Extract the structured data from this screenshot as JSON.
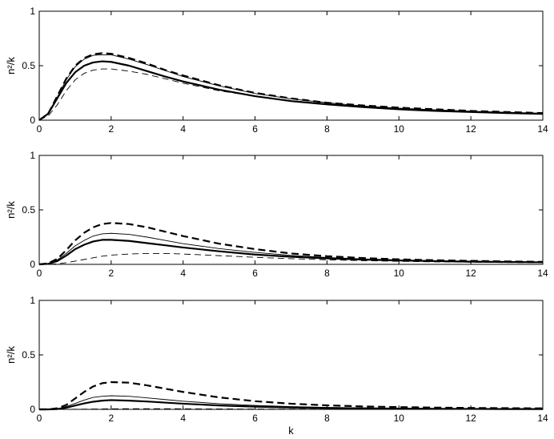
{
  "chart_data": [
    {
      "type": "line",
      "xlabel": "",
      "ylabel": "n²/k",
      "xlim": [
        0,
        14
      ],
      "ylim": [
        0,
        1
      ],
      "xticks": [
        "0",
        "2",
        "4",
        "6",
        "8",
        "10",
        "12",
        "14"
      ],
      "yticks": [
        "0",
        "0.5",
        "1"
      ],
      "grid": false,
      "series": [
        {
          "style": "thick-dashed",
          "x": [
            0,
            0.25,
            0.5,
            0.75,
            1,
            1.25,
            1.5,
            1.75,
            2,
            2.5,
            3,
            3.5,
            4,
            5,
            6,
            7,
            8,
            9,
            10,
            11,
            12,
            13,
            14
          ],
          "y": [
            0,
            0.06,
            0.22,
            0.38,
            0.5,
            0.57,
            0.605,
            0.615,
            0.61,
            0.57,
            0.52,
            0.46,
            0.41,
            0.32,
            0.25,
            0.2,
            0.16,
            0.135,
            0.115,
            0.1,
            0.085,
            0.075,
            0.065
          ]
        },
        {
          "style": "thin-solid",
          "x": [
            0,
            0.25,
            0.5,
            0.75,
            1,
            1.25,
            1.5,
            1.75,
            2,
            2.5,
            3,
            3.5,
            4,
            5,
            6,
            7,
            8,
            9,
            10,
            11,
            12,
            13,
            14
          ],
          "y": [
            0,
            0.06,
            0.21,
            0.37,
            0.49,
            0.56,
            0.595,
            0.6,
            0.6,
            0.56,
            0.51,
            0.455,
            0.4,
            0.315,
            0.245,
            0.195,
            0.16,
            0.13,
            0.11,
            0.095,
            0.082,
            0.072,
            0.063
          ]
        },
        {
          "style": "thick-solid",
          "x": [
            0,
            0.25,
            0.5,
            0.75,
            1,
            1.25,
            1.5,
            1.75,
            2,
            2.5,
            3,
            3.5,
            4,
            5,
            6,
            7,
            8,
            9,
            10,
            11,
            12,
            13,
            14
          ],
          "y": [
            0,
            0.06,
            0.2,
            0.34,
            0.44,
            0.5,
            0.53,
            0.54,
            0.535,
            0.5,
            0.45,
            0.4,
            0.355,
            0.28,
            0.22,
            0.175,
            0.145,
            0.12,
            0.1,
            0.085,
            0.075,
            0.065,
            0.058
          ]
        },
        {
          "style": "thin-dashed",
          "x": [
            0,
            0.25,
            0.5,
            0.75,
            1,
            1.25,
            1.5,
            1.75,
            2,
            2.5,
            3,
            3.5,
            4,
            5,
            6,
            7,
            8,
            9,
            10,
            11,
            12,
            13,
            14
          ],
          "y": [
            0,
            0.04,
            0.14,
            0.27,
            0.37,
            0.43,
            0.46,
            0.47,
            0.47,
            0.45,
            0.42,
            0.38,
            0.34,
            0.27,
            0.22,
            0.18,
            0.15,
            0.125,
            0.105,
            0.09,
            0.078,
            0.068,
            0.06
          ]
        }
      ]
    },
    {
      "type": "line",
      "xlabel": "",
      "ylabel": "n²/k",
      "xlim": [
        0,
        14
      ],
      "ylim": [
        0,
        1
      ],
      "xticks": [
        "0",
        "2",
        "4",
        "6",
        "8",
        "10",
        "12",
        "14"
      ],
      "yticks": [
        "0",
        "0.5",
        "1"
      ],
      "grid": false,
      "series": [
        {
          "style": "thick-dashed",
          "x": [
            0,
            0.25,
            0.5,
            0.75,
            1,
            1.25,
            1.5,
            1.75,
            2,
            2.5,
            3,
            3.5,
            4,
            5,
            6,
            7,
            8,
            9,
            10,
            11,
            12,
            13,
            14
          ],
          "y": [
            0,
            0.01,
            0.05,
            0.13,
            0.22,
            0.29,
            0.34,
            0.37,
            0.38,
            0.37,
            0.34,
            0.3,
            0.26,
            0.19,
            0.14,
            0.1,
            0.075,
            0.058,
            0.046,
            0.038,
            0.032,
            0.027,
            0.023
          ]
        },
        {
          "style": "thin-solid",
          "x": [
            0,
            0.25,
            0.5,
            0.75,
            1,
            1.25,
            1.5,
            1.75,
            2,
            2.5,
            3,
            3.5,
            4,
            5,
            6,
            7,
            8,
            9,
            10,
            11,
            12,
            13,
            14
          ],
          "y": [
            0,
            0.005,
            0.04,
            0.1,
            0.17,
            0.22,
            0.26,
            0.28,
            0.285,
            0.275,
            0.25,
            0.22,
            0.19,
            0.145,
            0.11,
            0.082,
            0.063,
            0.05,
            0.04,
            0.033,
            0.028,
            0.024,
            0.02
          ]
        },
        {
          "style": "thick-solid",
          "x": [
            0,
            0.25,
            0.5,
            0.75,
            1,
            1.25,
            1.5,
            1.75,
            2,
            2.5,
            3,
            3.5,
            4,
            5,
            6,
            7,
            8,
            9,
            10,
            11,
            12,
            13,
            14
          ],
          "y": [
            0,
            0.005,
            0.03,
            0.08,
            0.14,
            0.18,
            0.21,
            0.225,
            0.225,
            0.215,
            0.195,
            0.175,
            0.155,
            0.12,
            0.09,
            0.07,
            0.055,
            0.044,
            0.036,
            0.03,
            0.025,
            0.022,
            0.019
          ]
        },
        {
          "style": "thin-dashed",
          "x": [
            0,
            0.25,
            0.5,
            0.75,
            1,
            1.25,
            1.5,
            1.75,
            2,
            2.5,
            3,
            3.5,
            4,
            5,
            6,
            7,
            8,
            9,
            10,
            11,
            12,
            13,
            14
          ],
          "y": [
            0,
            0,
            0.005,
            0.015,
            0.03,
            0.045,
            0.06,
            0.075,
            0.085,
            0.095,
            0.1,
            0.1,
            0.095,
            0.08,
            0.065,
            0.052,
            0.042,
            0.034,
            0.028,
            0.023,
            0.02,
            0.017,
            0.015
          ]
        }
      ]
    },
    {
      "type": "line",
      "xlabel": "k",
      "ylabel": "n²/k",
      "xlim": [
        0,
        14
      ],
      "ylim": [
        0,
        1
      ],
      "xticks": [
        "0",
        "2",
        "4",
        "6",
        "8",
        "10",
        "12",
        "14"
      ],
      "yticks": [
        "0",
        "0.5",
        "1"
      ],
      "grid": false,
      "series": [
        {
          "style": "thick-dashed",
          "x": [
            0,
            0.25,
            0.5,
            0.75,
            1,
            1.25,
            1.5,
            1.75,
            2,
            2.5,
            3,
            3.5,
            4,
            5,
            6,
            7,
            8,
            9,
            10,
            11,
            12,
            13,
            14
          ],
          "y": [
            0,
            0,
            0.01,
            0.04,
            0.1,
            0.16,
            0.21,
            0.24,
            0.25,
            0.245,
            0.22,
            0.19,
            0.16,
            0.11,
            0.075,
            0.052,
            0.037,
            0.027,
            0.021,
            0.016,
            0.013,
            0.011,
            0.009
          ]
        },
        {
          "style": "thin-solid",
          "x": [
            0,
            0.25,
            0.5,
            0.75,
            1,
            1.25,
            1.5,
            1.75,
            2,
            2.5,
            3,
            3.5,
            4,
            5,
            6,
            7,
            8,
            9,
            10,
            11,
            12,
            13,
            14
          ],
          "y": [
            0,
            0,
            0.005,
            0.025,
            0.055,
            0.085,
            0.11,
            0.12,
            0.125,
            0.12,
            0.105,
            0.09,
            0.075,
            0.052,
            0.036,
            0.025,
            0.018,
            0.013,
            0.01,
            0.008,
            0.006,
            0.005,
            0.004
          ]
        },
        {
          "style": "thick-solid",
          "x": [
            0,
            0.25,
            0.5,
            0.75,
            1,
            1.25,
            1.5,
            1.75,
            2,
            2.5,
            3,
            3.5,
            4,
            5,
            6,
            7,
            8,
            9,
            10,
            11,
            12,
            13,
            14
          ],
          "y": [
            0,
            0,
            0.003,
            0.015,
            0.035,
            0.055,
            0.07,
            0.08,
            0.085,
            0.08,
            0.072,
            0.062,
            0.052,
            0.036,
            0.025,
            0.017,
            0.012,
            0.009,
            0.007,
            0.005,
            0.004,
            0.003,
            0.003
          ]
        },
        {
          "style": "thin-dashed",
          "x": [
            0,
            0.25,
            0.5,
            0.75,
            1,
            1.25,
            1.5,
            1.75,
            2,
            2.5,
            3,
            3.5,
            4,
            5,
            6,
            7,
            8,
            9,
            10,
            11,
            12,
            13,
            14
          ],
          "y": [
            0,
            0,
            0,
            0,
            0.001,
            0.002,
            0.003,
            0.004,
            0.005,
            0.006,
            0.006,
            0.006,
            0.005,
            0.004,
            0.003,
            0.002,
            0.002,
            0.001,
            0.001,
            0.001,
            0.001,
            0,
            0
          ]
        }
      ]
    }
  ]
}
